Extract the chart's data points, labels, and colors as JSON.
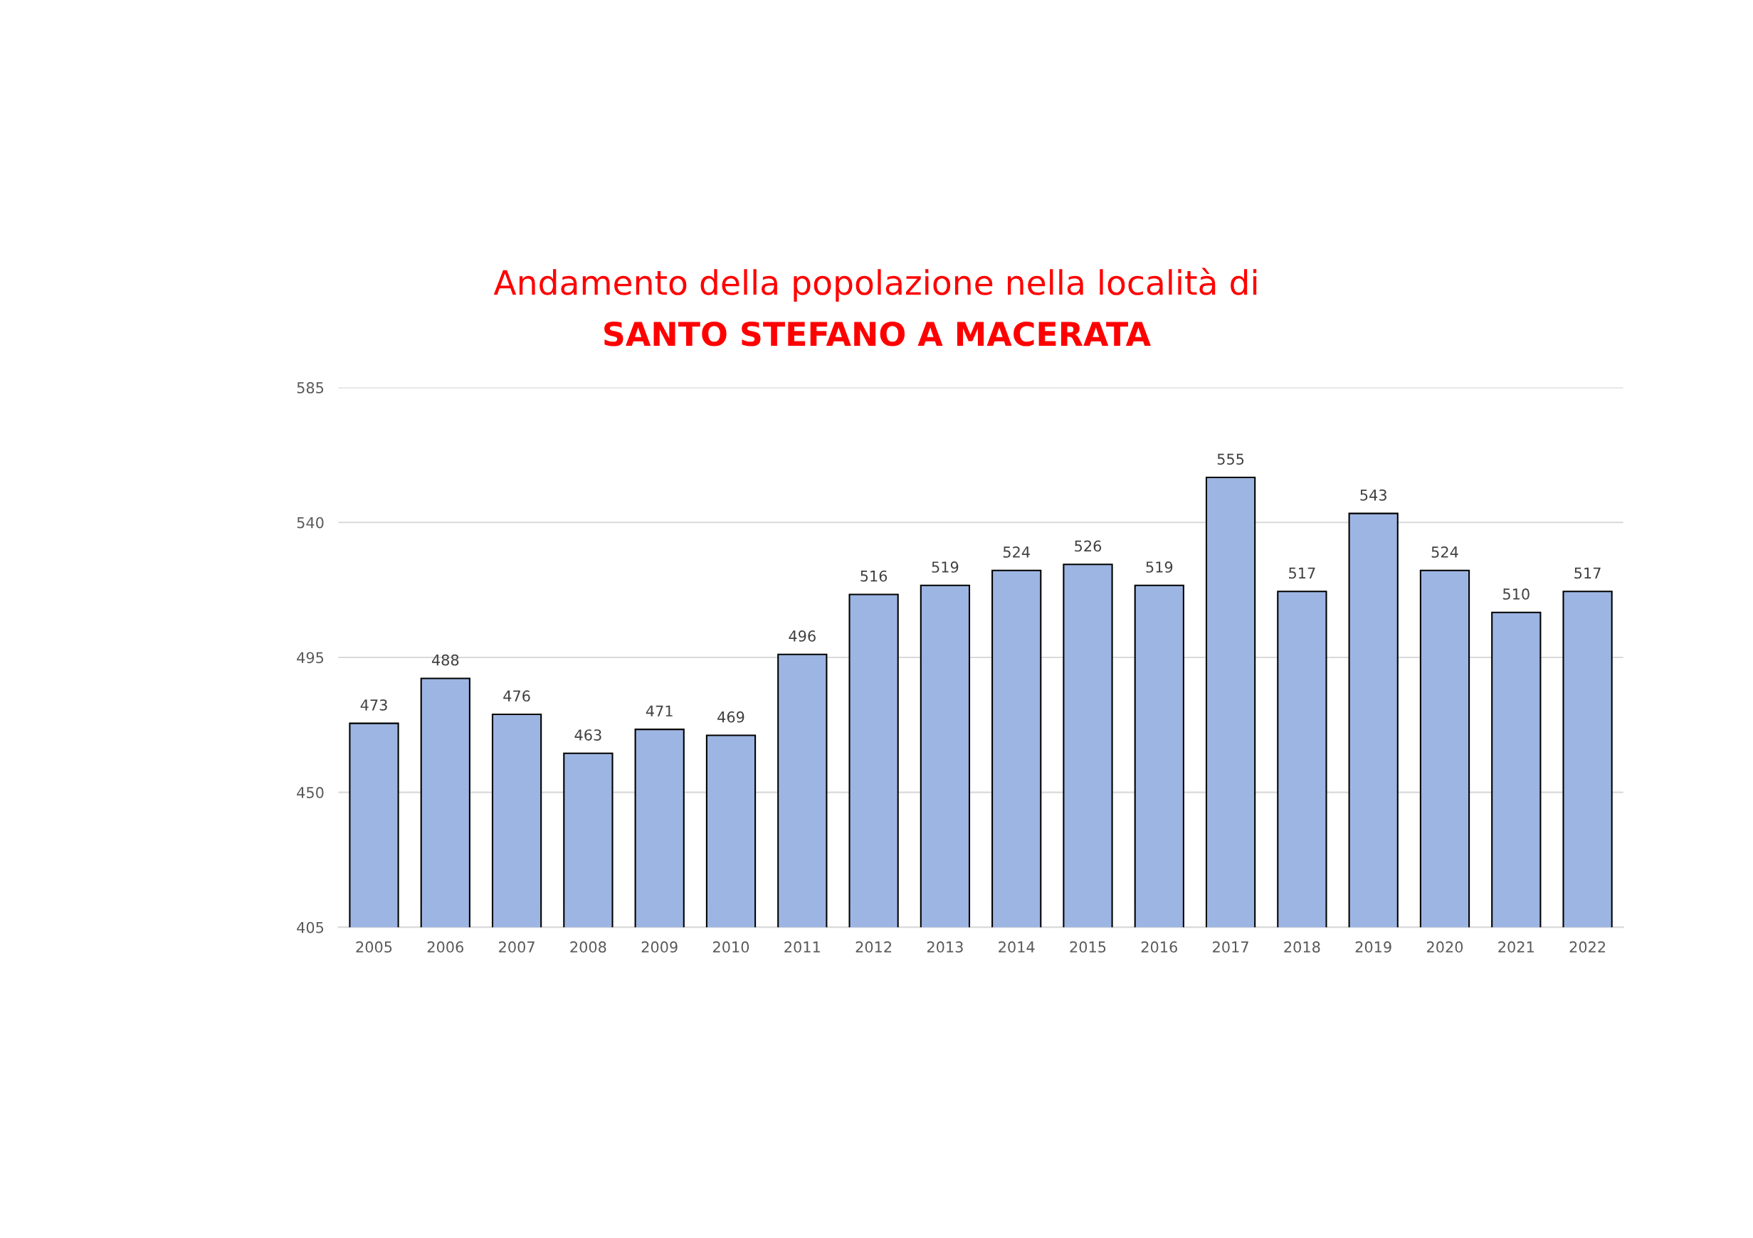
{
  "chart_data": {
    "type": "bar",
    "title": "Andamento della popolazione nella località di",
    "subtitle": "SANTO STEFANO A MACERATA",
    "categories": [
      "2005",
      "2006",
      "2007",
      "2008",
      "2009",
      "2010",
      "2011",
      "2012",
      "2013",
      "2014",
      "2015",
      "2016",
      "2017",
      "2018",
      "2019",
      "2020",
      "2021",
      "2022"
    ],
    "values": [
      473,
      488,
      476,
      463,
      471,
      469,
      496,
      516,
      519,
      524,
      526,
      519,
      555,
      517,
      543,
      524,
      510,
      517
    ],
    "color": "#9db5e2",
    "ylim": [
      405,
      585
    ],
    "yticks": [
      405,
      450,
      495,
      540,
      585
    ],
    "grid": "y",
    "data_labels": true,
    "legend": false
  }
}
